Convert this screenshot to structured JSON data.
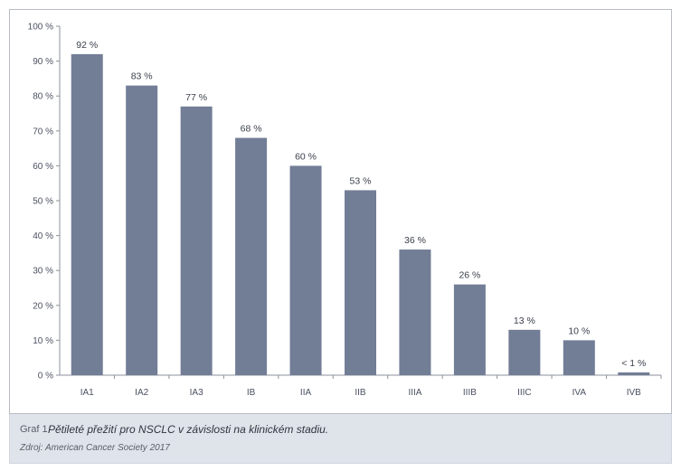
{
  "chart_data": {
    "type": "bar",
    "title": "",
    "xlabel": "",
    "ylabel": "",
    "ylim": [
      0,
      100
    ],
    "yticks": [
      0,
      10,
      20,
      30,
      40,
      50,
      60,
      70,
      80,
      90,
      100
    ],
    "ytick_labels": [
      "0 %",
      "10 %",
      "20 %",
      "30 %",
      "40 %",
      "50 %",
      "60 %",
      "70 %",
      "80 %",
      "90 %",
      "100 %"
    ],
    "categories": [
      "IA1",
      "IA2",
      "IA3",
      "IB",
      "IIA",
      "IIB",
      "IIIA",
      "IIIB",
      "IIIC",
      "IVA",
      "IVB"
    ],
    "values": [
      92,
      83,
      77,
      68,
      60,
      53,
      36,
      26,
      13,
      10,
      0.8
    ],
    "value_labels": [
      "92 %",
      "83 %",
      "77 %",
      "68 %",
      "60 %",
      "53 %",
      "36 %",
      "26 %",
      "13 %",
      "10 %",
      "< 1 %"
    ],
    "bar_color": "#727d96",
    "grid": false
  },
  "caption": {
    "label": "Graf 1",
    "title": "Pětileté přežití pro NSCLC v závislosti na klinickém stadiu.",
    "source": "Zdroj: American Cancer Society 2017"
  }
}
